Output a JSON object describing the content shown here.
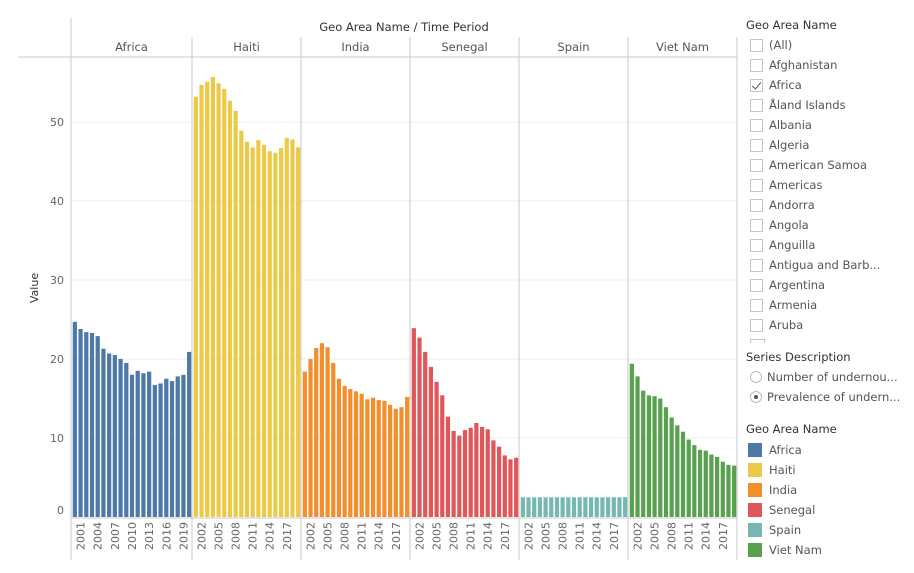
{
  "chart_data": {
    "type": "bar",
    "title": "Geo Area Name / Time Period",
    "ylabel": "Value",
    "xlabel": "",
    "ylim": [
      0,
      58
    ],
    "yticks": [
      0,
      10,
      20,
      30,
      40,
      50
    ],
    "grid": true,
    "panels": [
      {
        "name": "Africa",
        "color": "#4e79a7",
        "years": [
          2000,
          2001,
          2002,
          2003,
          2004,
          2005,
          2006,
          2007,
          2008,
          2009,
          2010,
          2011,
          2012,
          2013,
          2014,
          2015,
          2016,
          2017,
          2018,
          2019,
          2020
        ],
        "values": [
          24.7,
          23.8,
          23.4,
          23.3,
          22.9,
          21.3,
          20.7,
          20.5,
          20.0,
          19.5,
          18.0,
          18.5,
          18.2,
          18.4,
          16.7,
          16.9,
          17.5,
          17.2,
          17.8,
          18.0,
          20.9
        ]
      },
      {
        "name": "Haiti",
        "color": "#edc948",
        "years": [
          2001,
          2002,
          2003,
          2004,
          2005,
          2006,
          2007,
          2008,
          2009,
          2010,
          2011,
          2012,
          2013,
          2014,
          2015,
          2016,
          2017,
          2018,
          2019
        ],
        "values": [
          53.2,
          54.7,
          55.1,
          55.7,
          54.9,
          54.2,
          52.7,
          51.4,
          48.9,
          47.5,
          46.8,
          47.7,
          47.1,
          46.3,
          46.1,
          46.7,
          48.0,
          47.8,
          46.8
        ]
      },
      {
        "name": "India",
        "color": "#f28e2b",
        "years": [
          2001,
          2002,
          2003,
          2004,
          2005,
          2006,
          2007,
          2008,
          2009,
          2010,
          2011,
          2012,
          2013,
          2014,
          2015,
          2016,
          2017,
          2018,
          2019
        ],
        "values": [
          18.4,
          20.0,
          21.4,
          22.0,
          21.5,
          19.5,
          17.5,
          16.6,
          16.2,
          15.9,
          15.6,
          14.9,
          15.1,
          14.8,
          14.7,
          14.2,
          13.7,
          13.9,
          15.2
        ]
      },
      {
        "name": "Senegal",
        "color": "#e15759",
        "years": [
          2001,
          2002,
          2003,
          2004,
          2005,
          2006,
          2007,
          2008,
          2009,
          2010,
          2011,
          2012,
          2013,
          2014,
          2015,
          2016,
          2017,
          2018,
          2019
        ],
        "values": [
          23.9,
          22.7,
          20.9,
          19.0,
          17.1,
          15.4,
          12.7,
          10.9,
          10.3,
          11.0,
          11.3,
          11.9,
          11.4,
          11.1,
          9.7,
          8.9,
          7.8,
          7.3,
          7.5
        ]
      },
      {
        "name": "Spain",
        "color": "#76b7b2",
        "years": [
          2001,
          2002,
          2003,
          2004,
          2005,
          2006,
          2007,
          2008,
          2009,
          2010,
          2011,
          2012,
          2013,
          2014,
          2015,
          2016,
          2017,
          2018,
          2019
        ],
        "values": [
          2.5,
          2.5,
          2.5,
          2.5,
          2.5,
          2.5,
          2.5,
          2.5,
          2.5,
          2.5,
          2.5,
          2.5,
          2.5,
          2.5,
          2.5,
          2.5,
          2.5,
          2.5,
          2.5
        ]
      },
      {
        "name": "Viet Nam",
        "color": "#59a14f",
        "years": [
          2001,
          2002,
          2003,
          2004,
          2005,
          2006,
          2007,
          2008,
          2009,
          2010,
          2011,
          2012,
          2013,
          2014,
          2015,
          2016,
          2017,
          2018,
          2019
        ],
        "values": [
          19.4,
          17.8,
          16.0,
          15.4,
          15.3,
          15.0,
          13.9,
          12.6,
          11.6,
          10.8,
          9.8,
          9.1,
          8.5,
          8.4,
          7.9,
          7.6,
          7.0,
          6.6,
          6.5
        ]
      }
    ]
  },
  "filter": {
    "title": "Geo Area Name",
    "items": [
      {
        "label": "(All)",
        "checked": false
      },
      {
        "label": "Afghanistan",
        "checked": false
      },
      {
        "label": "Africa",
        "checked": true
      },
      {
        "label": "Åland Islands",
        "checked": false
      },
      {
        "label": "Albania",
        "checked": false
      },
      {
        "label": "Algeria",
        "checked": false
      },
      {
        "label": "American Samoa",
        "checked": false
      },
      {
        "label": "Americas",
        "checked": false
      },
      {
        "label": "Andorra",
        "checked": false
      },
      {
        "label": "Angola",
        "checked": false
      },
      {
        "label": "Anguilla",
        "checked": false
      },
      {
        "label": "Antigua and Barb...",
        "checked": false
      },
      {
        "label": "Argentina",
        "checked": false
      },
      {
        "label": "Armenia",
        "checked": false
      },
      {
        "label": "Aruba",
        "checked": false
      }
    ]
  },
  "series_filter": {
    "title": "Series Description",
    "options": [
      {
        "label": "Number of undernou...",
        "selected": false
      },
      {
        "label": "Prevalence of undern...",
        "selected": true
      }
    ]
  },
  "color_legend": {
    "title": "Geo Area Name",
    "items": [
      {
        "label": "Africa",
        "color": "#4e79a7"
      },
      {
        "label": "Haiti",
        "color": "#edc948"
      },
      {
        "label": "India",
        "color": "#f28e2b"
      },
      {
        "label": "Senegal",
        "color": "#e15759"
      },
      {
        "label": "Spain",
        "color": "#76b7b2"
      },
      {
        "label": "Viet Nam",
        "color": "#59a14f"
      }
    ]
  }
}
